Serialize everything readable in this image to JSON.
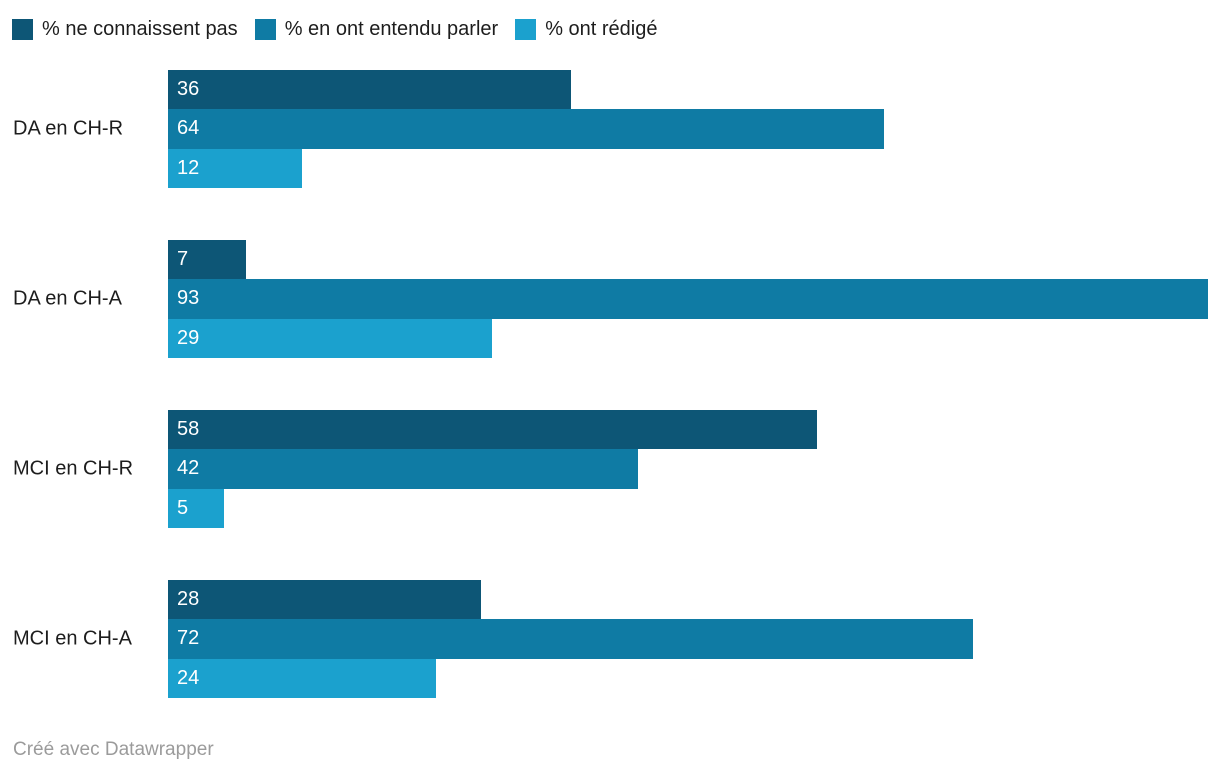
{
  "legend": {
    "items": [
      {
        "label": "% ne connaissent pas",
        "color": "#0d5676"
      },
      {
        "label": "% en ont entendu parler",
        "color": "#0f7ba4"
      },
      {
        "label": "% ont rédigé",
        "color": "#1ba1ce"
      }
    ]
  },
  "chart_data": {
    "type": "bar",
    "orientation": "horizontal",
    "title": "",
    "xlabel": "",
    "ylabel": "",
    "categories": [
      "DA en CH-R",
      "DA en CH-A",
      "MCI en CH-R",
      "MCI en CH-A"
    ],
    "series": [
      {
        "name": "% ne connaissent pas",
        "color": "#0d5676",
        "values": [
          36,
          7,
          58,
          28
        ]
      },
      {
        "name": "% en ont entendu parler",
        "color": "#0f7ba4",
        "values": [
          64,
          93,
          42,
          72
        ]
      },
      {
        "name": "% ont rédigé",
        "color": "#1ba1ce",
        "values": [
          12,
          29,
          5,
          24
        ]
      }
    ],
    "xmax": 93,
    "grid": false,
    "axis_visible": false,
    "legend_position": "top-left",
    "value_labels": "inside-left",
    "value_label_color": "#ffffff"
  },
  "footer": {
    "credit": "Créé avec Datawrapper"
  }
}
